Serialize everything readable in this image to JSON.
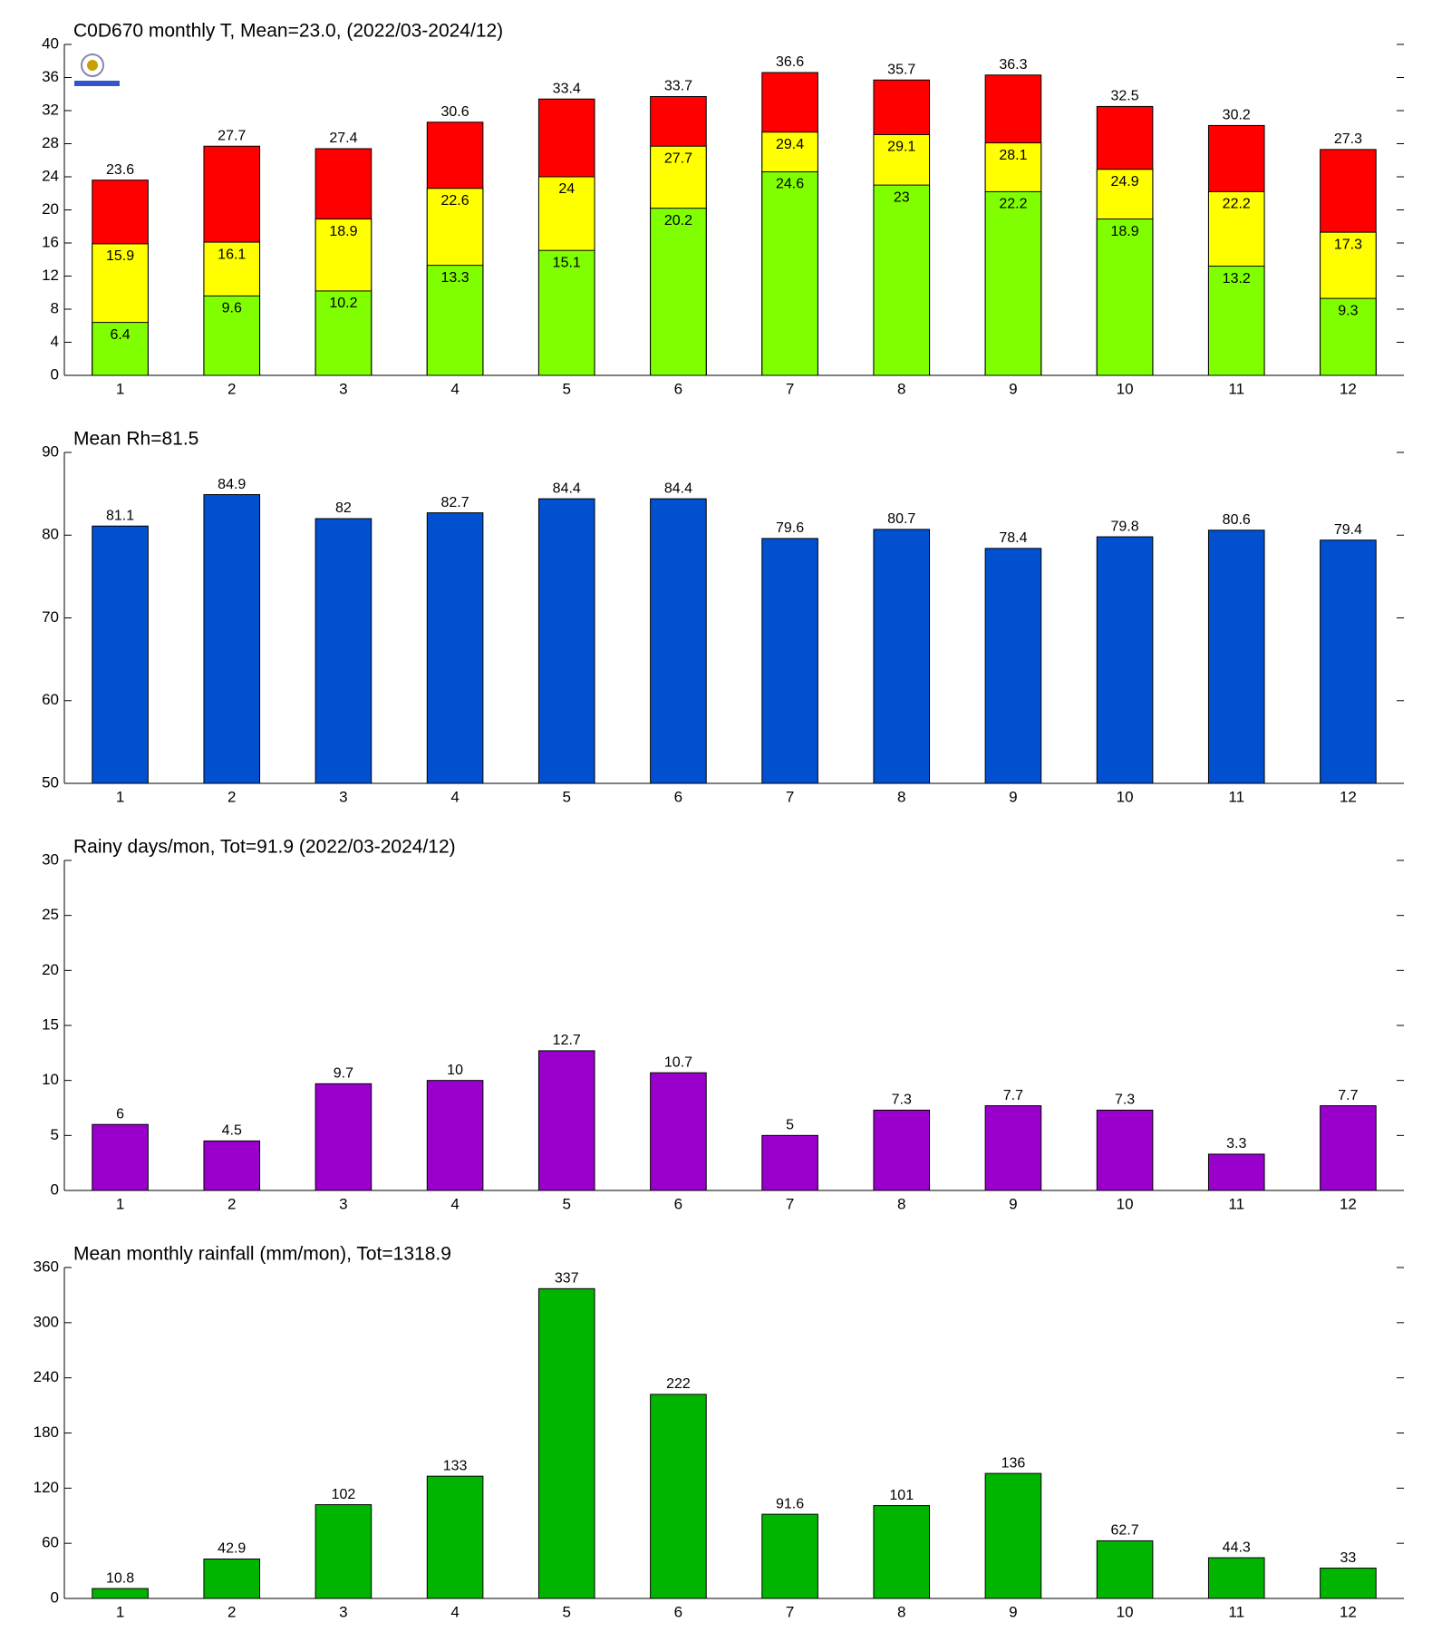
{
  "chart_data": [
    {
      "type": "bar",
      "title": "C0D670 monthly T, Mean=23.0, (2022/03-2024/12)",
      "categories": [
        1,
        2,
        3,
        4,
        5,
        6,
        7,
        8,
        9,
        10,
        11,
        12
      ],
      "series": [
        {
          "color": "#ff0000",
          "values": [
            23.6,
            27.7,
            27.4,
            30.6,
            33.4,
            33.7,
            36.6,
            35.7,
            36.3,
            32.5,
            30.2,
            27.3
          ]
        },
        {
          "color": "#ffff00",
          "values": [
            15.9,
            16.1,
            18.9,
            22.6,
            24,
            27.7,
            29.4,
            29.1,
            28.1,
            24.9,
            22.2,
            17.3
          ]
        },
        {
          "color": "#80ff00",
          "values": [
            6.4,
            9.6,
            10.2,
            13.3,
            15.1,
            20.2,
            24.6,
            23,
            22.2,
            18.9,
            13.2,
            9.3
          ]
        }
      ],
      "ylim": [
        0,
        40
      ],
      "yticks": [
        0,
        4,
        8,
        12,
        16,
        20,
        24,
        28,
        32,
        36,
        40
      ]
    },
    {
      "type": "bar",
      "title": "Mean Rh=81.5",
      "categories": [
        1,
        2,
        3,
        4,
        5,
        6,
        7,
        8,
        9,
        10,
        11,
        12
      ],
      "values": [
        81.1,
        84.9,
        82,
        82.7,
        84.4,
        84.4,
        79.6,
        80.7,
        78.4,
        79.8,
        80.6,
        79.4
      ],
      "color": "#0050d0",
      "ylim": [
        50,
        90
      ],
      "yticks": [
        50,
        60,
        70,
        80,
        90
      ]
    },
    {
      "type": "bar",
      "title": "Rainy days/mon, Tot=91.9 (2022/03-2024/12)",
      "categories": [
        1,
        2,
        3,
        4,
        5,
        6,
        7,
        8,
        9,
        10,
        11,
        12
      ],
      "values": [
        6,
        4.5,
        9.7,
        10,
        12.7,
        10.7,
        5,
        7.3,
        7.7,
        7.3,
        3.3,
        7.7
      ],
      "color": "#9900cc",
      "ylim": [
        0,
        30
      ],
      "yticks": [
        0,
        5,
        10,
        15,
        20,
        25,
        30
      ]
    },
    {
      "type": "bar",
      "title": "Mean monthly rainfall (mm/mon), Tot=1318.9",
      "categories": [
        1,
        2,
        3,
        4,
        5,
        6,
        7,
        8,
        9,
        10,
        11,
        12
      ],
      "values": [
        10.8,
        42.9,
        102,
        133,
        337,
        222,
        91.6,
        101,
        136,
        62.7,
        44.3,
        33
      ],
      "color": "#00b400",
      "ylim": [
        0,
        360
      ],
      "yticks": [
        0,
        60,
        120,
        180,
        240,
        300,
        360
      ]
    }
  ]
}
